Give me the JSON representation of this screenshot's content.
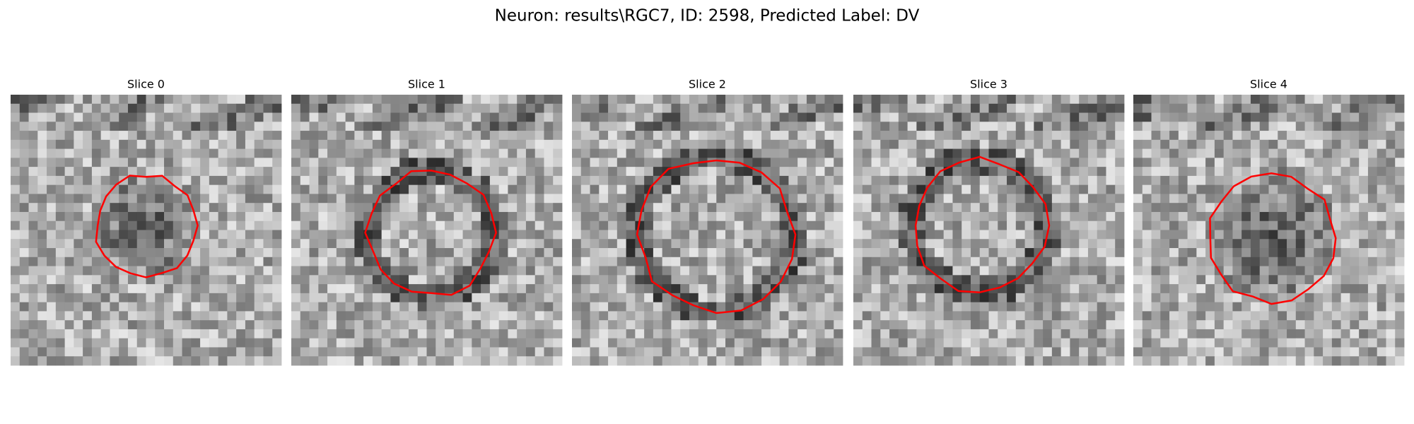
{
  "title": "Neuron: results\\RGC7, ID: 2598, Predicted Label: DV",
  "panels": [
    {
      "title": "Slice 0"
    },
    {
      "title": "Slice 1"
    },
    {
      "title": "Slice 2"
    },
    {
      "title": "Slice 3"
    },
    {
      "title": "Slice 4"
    }
  ]
}
